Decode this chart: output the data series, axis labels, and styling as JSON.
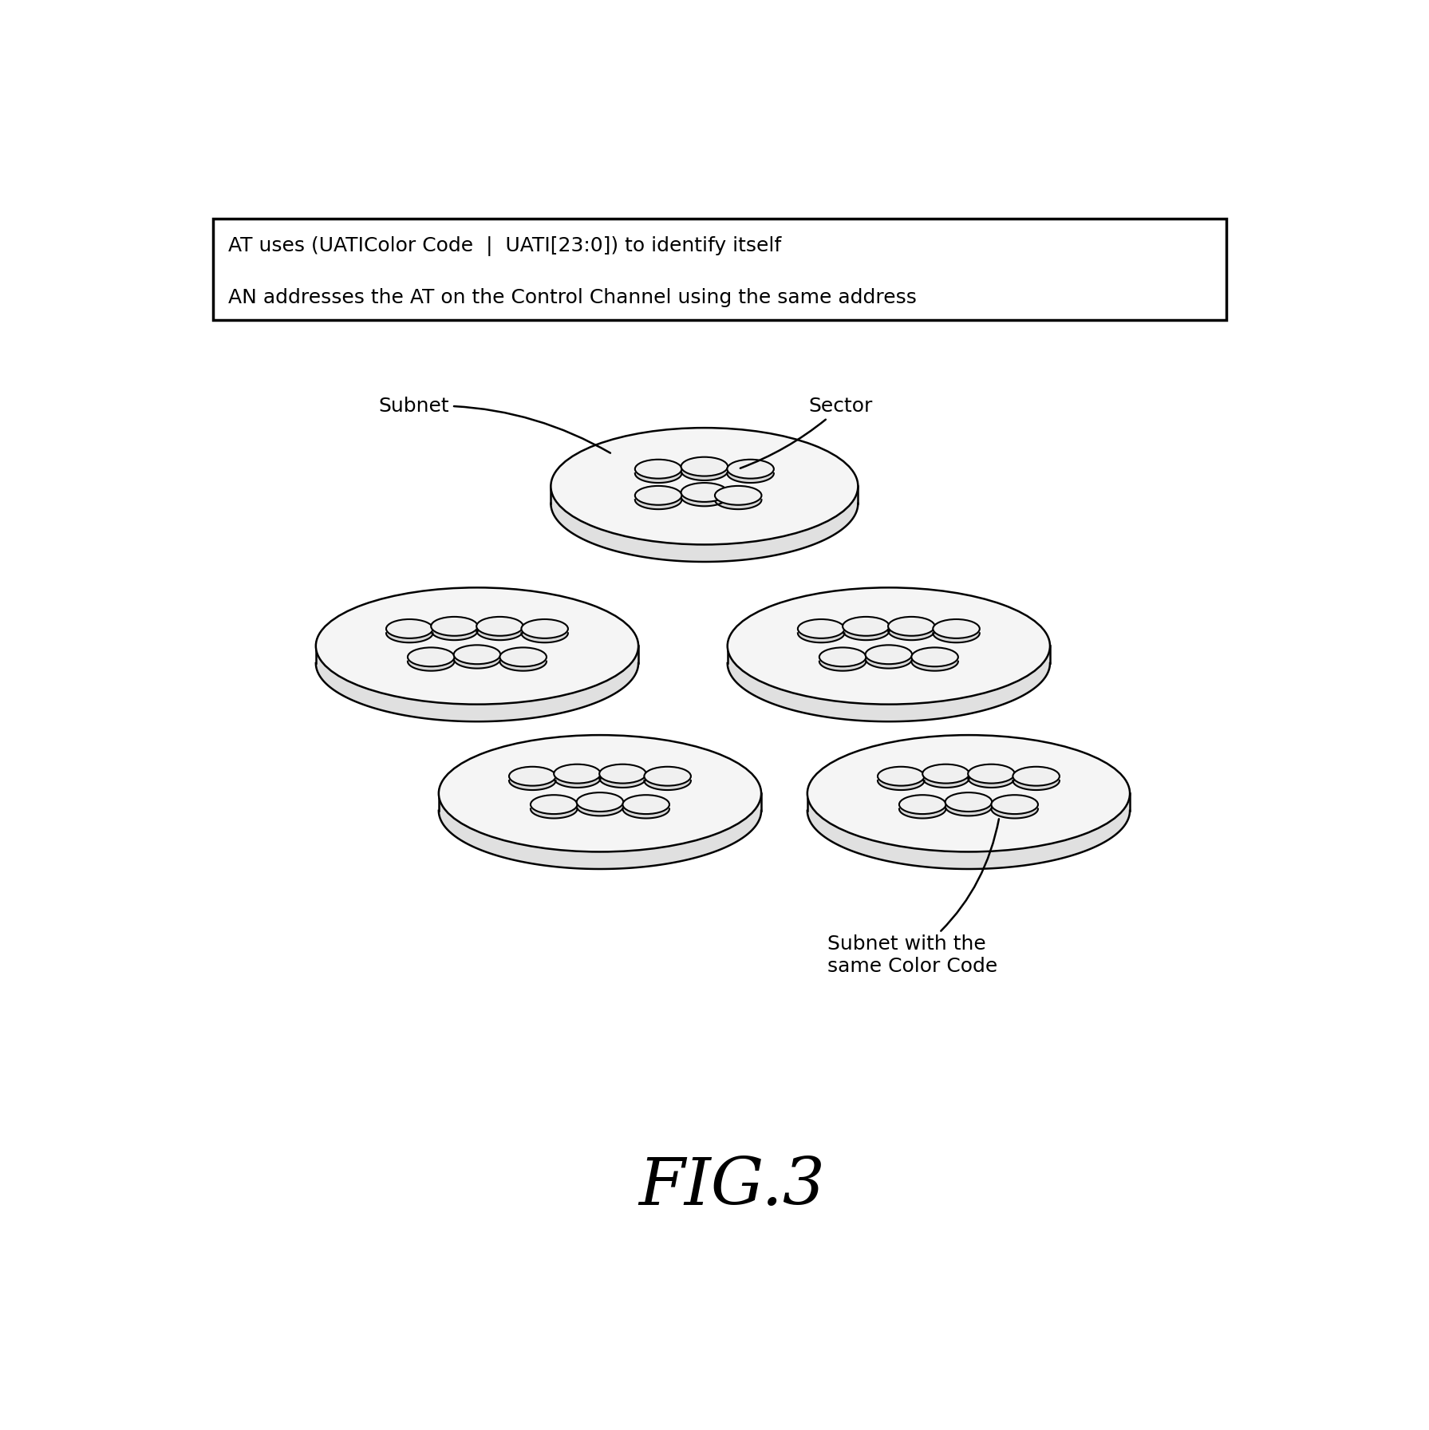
{
  "title": "FIG.3",
  "header_line1": "AT uses (UATIColor Code  |  UATI[23:0]) to identify itself",
  "header_line2": "AN addresses the AT on the Control Channel using the same address",
  "label_subnet": "Subnet",
  "label_sector": "Sector",
  "label_subnet_same": "Subnet with the\nsame Color Code",
  "background_color": "#ffffff",
  "line_color": "#000000",
  "disk_fill": "#f5f5f5",
  "disk_side_fill": "#e0e0e0",
  "disk_edge": "#000000",
  "circle_fill": "#f0f0f0",
  "circle_edge": "#000000",
  "fig_width": 17.91,
  "fig_height": 17.92,
  "lw_disk": 1.8,
  "lw_circle": 1.5
}
